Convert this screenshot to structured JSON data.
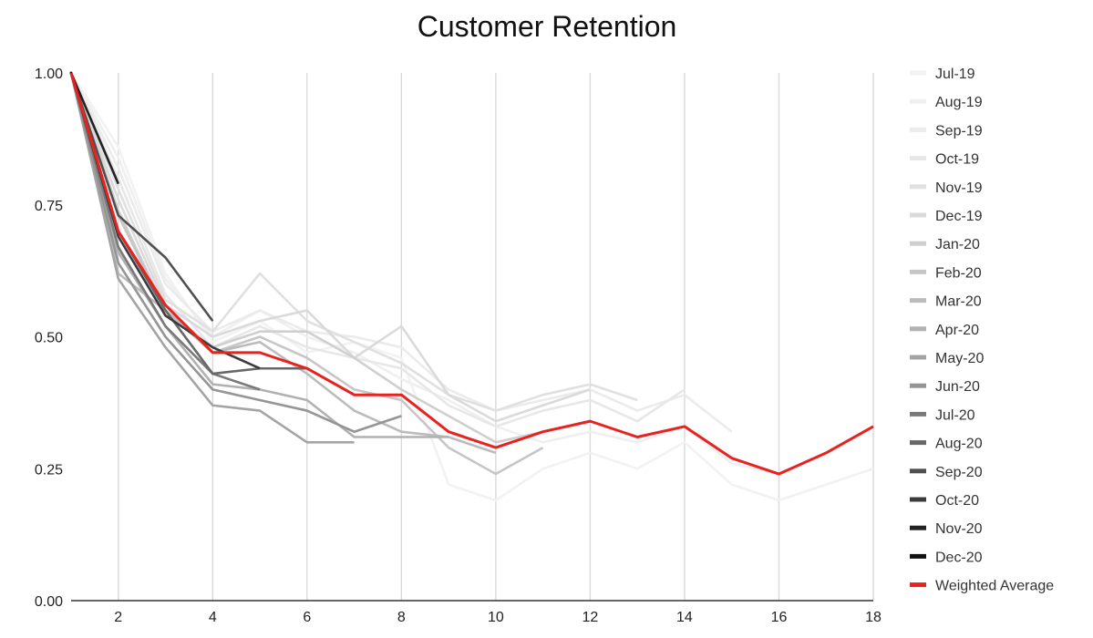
{
  "chart_data": {
    "type": "line",
    "title": "Customer Retention",
    "xlabel": "",
    "ylabel": "",
    "xlim": [
      1,
      18
    ],
    "ylim": [
      0,
      1
    ],
    "x_ticks": [
      2,
      4,
      6,
      8,
      10,
      12,
      14,
      16,
      18
    ],
    "y_ticks": [
      "0.00",
      "0.25",
      "0.50",
      "0.75",
      "1.00"
    ],
    "grid": "vertical",
    "legend_position": "right",
    "series": [
      {
        "name": "Jul-19",
        "color": "#f2f2f2",
        "values": [
          1.0,
          0.86,
          0.62,
          0.49,
          0.53,
          0.47,
          0.49,
          0.46,
          0.22,
          0.19,
          0.25,
          0.28,
          0.25,
          0.3,
          0.22,
          0.19,
          0.22,
          0.25
        ]
      },
      {
        "name": "Aug-19",
        "color": "#efefef",
        "values": [
          1.0,
          0.84,
          0.61,
          0.5,
          0.55,
          0.5,
          0.47,
          0.42,
          0.38,
          0.33,
          0.3,
          0.32,
          0.3,
          0.33,
          0.26,
          0.24,
          0.28
        ]
      },
      {
        "name": "Sep-19",
        "color": "#ebebeb",
        "values": [
          1.0,
          0.82,
          0.6,
          0.51,
          0.55,
          0.51,
          0.5,
          0.48,
          0.4,
          0.36,
          0.38,
          0.4,
          0.36,
          0.39,
          0.32
        ]
      },
      {
        "name": "Oct-19",
        "color": "#e7e7e7",
        "values": [
          1.0,
          0.8,
          0.58,
          0.48,
          0.52,
          0.48,
          0.46,
          0.44,
          0.37,
          0.33,
          0.36,
          0.38,
          0.34,
          0.4
        ]
      },
      {
        "name": "Nov-19",
        "color": "#e0e0e0",
        "values": [
          1.0,
          0.78,
          0.57,
          0.51,
          0.62,
          0.53,
          0.49,
          0.45,
          0.39,
          0.36,
          0.39,
          0.41,
          0.38
        ]
      },
      {
        "name": "Dec-19",
        "color": "#dadada",
        "values": [
          1.0,
          0.76,
          0.56,
          0.5,
          0.53,
          0.55,
          0.46,
          0.52,
          0.39,
          0.34,
          0.37,
          0.4
        ]
      },
      {
        "name": "Jan-20",
        "color": "#cfcfcf",
        "values": [
          1.0,
          0.74,
          0.55,
          0.48,
          0.51,
          0.51,
          0.46,
          0.4,
          0.35,
          0.3,
          0.32
        ]
      },
      {
        "name": "Feb-20",
        "color": "#c6c6c6",
        "values": [
          1.0,
          0.73,
          0.55,
          0.47,
          0.5,
          0.46,
          0.4,
          0.38,
          0.29,
          0.24,
          0.29
        ]
      },
      {
        "name": "Mar-20",
        "color": "#bbbbbb",
        "values": [
          1.0,
          0.62,
          0.55,
          0.47,
          0.49,
          0.43,
          0.36,
          0.32,
          0.31,
          0.28
        ]
      },
      {
        "name": "Apr-20",
        "color": "#b1b1b1",
        "values": [
          1.0,
          0.66,
          0.52,
          0.41,
          0.4,
          0.38,
          0.31,
          0.31,
          0.31
        ]
      },
      {
        "name": "May-20",
        "color": "#a4a4a4",
        "values": [
          1.0,
          0.61,
          0.48,
          0.37,
          0.36,
          0.3,
          0.3
        ]
      },
      {
        "name": "Jun-20",
        "color": "#959595",
        "values": [
          1.0,
          0.64,
          0.5,
          0.4,
          0.38,
          0.36,
          0.32,
          0.35
        ]
      },
      {
        "name": "Jul-20",
        "color": "#7a7a7a",
        "values": [
          1.0,
          0.67,
          0.52,
          0.43,
          0.4
        ]
      },
      {
        "name": "Aug-20",
        "color": "#686868",
        "values": [
          1.0,
          0.7,
          0.55,
          0.43,
          0.44,
          0.44
        ]
      },
      {
        "name": "Sep-20",
        "color": "#505050",
        "values": [
          1.0,
          0.73,
          0.65,
          0.53
        ]
      },
      {
        "name": "Oct-20",
        "color": "#3c3c3c",
        "values": [
          1.0,
          0.69,
          0.54,
          0.48,
          0.44
        ]
      },
      {
        "name": "Nov-20",
        "color": "#222222",
        "values": [
          1.0,
          0.79
        ]
      },
      {
        "name": "Dec-20",
        "color": "#111111",
        "values": [
          1.0
        ]
      },
      {
        "name": "Weighted Average",
        "color": "#e8221f",
        "values": [
          1.0,
          0.7,
          0.56,
          0.47,
          0.47,
          0.44,
          0.39,
          0.39,
          0.32,
          0.29,
          0.32,
          0.34,
          0.31,
          0.33,
          0.27,
          0.24,
          0.28,
          0.33
        ]
      }
    ]
  }
}
